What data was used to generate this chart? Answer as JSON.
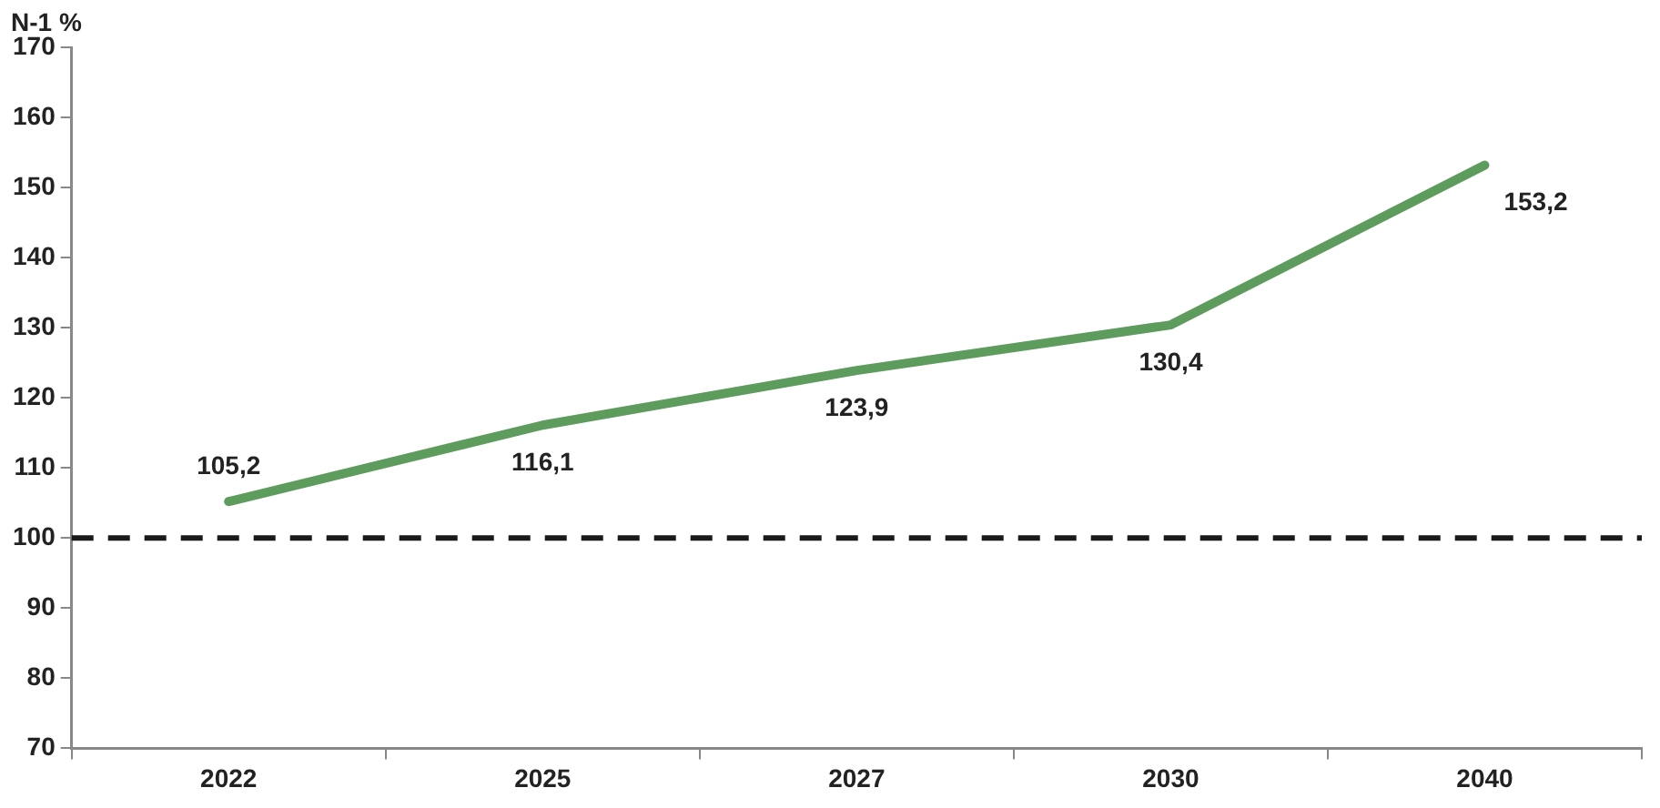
{
  "chart_data": {
    "type": "line",
    "ylabel": "N-1 %",
    "categories": [
      "2022",
      "2025",
      "2027",
      "2030",
      "2040"
    ],
    "series": [
      {
        "color": "#5e9c5e",
        "values": [
          105.2,
          116.1,
          123.9,
          130.4,
          153.2
        ],
        "value_labels": [
          "105,2",
          "116,1",
          "123,9",
          "130,4",
          "153,2"
        ]
      }
    ],
    "ylim": [
      70,
      170
    ],
    "yticks": [
      70,
      80,
      90,
      100,
      110,
      120,
      130,
      140,
      150,
      160,
      170
    ],
    "ref_lines": [
      {
        "axis": "y",
        "value": 100,
        "color": "#1a1a1a",
        "line_style": "dashed"
      }
    ],
    "grid": false,
    "legend": false,
    "marker": "none",
    "line_style": "solid"
  }
}
